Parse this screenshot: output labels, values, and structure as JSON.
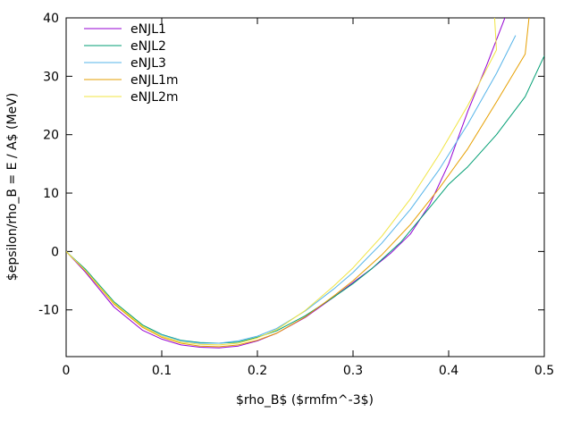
{
  "chart_data": {
    "type": "line",
    "xlabel": "$rho_B$ ($rmfm^-3$)",
    "ylabel": "$epsilon/rho_B = E / A$ (MeV)",
    "xlim": [
      0,
      0.5
    ],
    "ylim": [
      -18,
      40
    ],
    "xticks": [
      0,
      0.1,
      0.2,
      0.3,
      0.4,
      0.5
    ],
    "xtick_labels": [
      "0",
      "0.1",
      "0.2",
      "0.3",
      "0.4",
      "0.5"
    ],
    "yticks": [
      -10,
      0,
      10,
      20,
      30,
      40
    ],
    "ytick_labels": [
      "-10",
      "0",
      "10",
      "20",
      "30",
      "40"
    ],
    "grid": false,
    "legend": "top-left",
    "series": [
      {
        "name": "eNJL1",
        "color": "#9400d3",
        "x": [
          0,
          0.02,
          0.05,
          0.08,
          0.1,
          0.12,
          0.14,
          0.16,
          0.18,
          0.2,
          0.22,
          0.25,
          0.28,
          0.3,
          0.32,
          0.34,
          0.36,
          0.38,
          0.4,
          0.42,
          0.44,
          0.46
        ],
        "y": [
          0,
          -3.5,
          -9.5,
          -13.5,
          -15.0,
          -16.0,
          -16.4,
          -16.5,
          -16.2,
          -15.3,
          -14.0,
          -11.3,
          -7.8,
          -5.3,
          -2.9,
          -0.2,
          3.0,
          8.0,
          15.0,
          24.0,
          32.0,
          40.5
        ]
      },
      {
        "name": "eNJL2",
        "color": "#009e73",
        "x": [
          0,
          0.02,
          0.05,
          0.08,
          0.1,
          0.12,
          0.14,
          0.16,
          0.18,
          0.2,
          0.22,
          0.25,
          0.28,
          0.3,
          0.32,
          0.35,
          0.38,
          0.4,
          0.42,
          0.45,
          0.48,
          0.5
        ],
        "y": [
          0,
          -3.0,
          -8.6,
          -12.6,
          -14.2,
          -15.2,
          -15.6,
          -15.7,
          -15.5,
          -14.7,
          -13.6,
          -11.0,
          -7.8,
          -5.5,
          -2.9,
          1.6,
          7.5,
          11.5,
          14.5,
          20.0,
          26.5,
          33.5
        ]
      },
      {
        "name": "eNJL3",
        "color": "#56b4e9",
        "x": [
          0,
          0.02,
          0.05,
          0.08,
          0.1,
          0.12,
          0.14,
          0.16,
          0.18,
          0.2,
          0.22,
          0.25,
          0.28,
          0.3,
          0.33,
          0.36,
          0.39,
          0.42,
          0.45,
          0.47
        ],
        "y": [
          0,
          -3.2,
          -8.8,
          -12.8,
          -14.3,
          -15.3,
          -15.7,
          -15.7,
          -15.3,
          -14.5,
          -13.2,
          -10.2,
          -6.4,
          -3.6,
          1.4,
          7.2,
          14.0,
          21.8,
          30.5,
          37.0
        ]
      },
      {
        "name": "eNJL1m",
        "color": "#e69f00",
        "x": [
          0,
          0.02,
          0.05,
          0.08,
          0.1,
          0.12,
          0.14,
          0.16,
          0.18,
          0.2,
          0.22,
          0.25,
          0.28,
          0.3,
          0.33,
          0.36,
          0.39,
          0.42,
          0.45,
          0.48,
          0.484
        ],
        "y": [
          0,
          -3.3,
          -9.0,
          -13.0,
          -14.7,
          -15.7,
          -16.2,
          -16.3,
          -16.0,
          -15.2,
          -14.0,
          -11.2,
          -7.6,
          -5.0,
          -0.6,
          4.6,
          10.8,
          17.6,
          25.6,
          33.8,
          40.0
        ]
      },
      {
        "name": "eNJL2m",
        "color": "#f0e442",
        "x": [
          0,
          0.02,
          0.05,
          0.08,
          0.1,
          0.12,
          0.14,
          0.16,
          0.18,
          0.2,
          0.22,
          0.25,
          0.28,
          0.3,
          0.33,
          0.36,
          0.39,
          0.42,
          0.45,
          0.448
        ],
        "y": [
          0,
          -3.2,
          -8.8,
          -12.8,
          -14.5,
          -15.5,
          -15.9,
          -16.0,
          -15.7,
          -14.8,
          -13.4,
          -10.1,
          -5.9,
          -2.8,
          2.6,
          9.0,
          16.6,
          25.0,
          34.5,
          40.0
        ]
      }
    ]
  }
}
